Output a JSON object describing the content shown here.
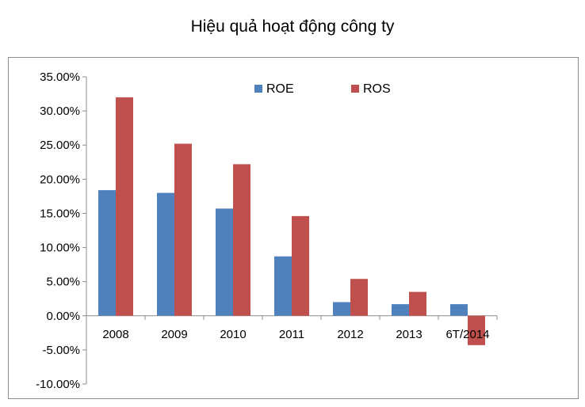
{
  "title": "Hiệu quả hoạt động công ty",
  "chart_data": {
    "type": "bar",
    "title": "Hiệu quả hoạt động công ty",
    "categories": [
      "2008",
      "2009",
      "2010",
      "2011",
      "2012",
      "2013",
      "6T/2014"
    ],
    "series": [
      {
        "name": "ROE",
        "color": "#4f81bd",
        "values": [
          18.4,
          18.0,
          15.7,
          8.7,
          2.0,
          1.7,
          1.7
        ]
      },
      {
        "name": "ROS",
        "color": "#c0504d",
        "values": [
          32.0,
          25.2,
          22.2,
          14.6,
          5.4,
          3.5,
          -4.3
        ]
      }
    ],
    "ylim": [
      -10,
      35
    ],
    "yticks": [
      "35.00%",
      "30.00%",
      "25.00%",
      "20.00%",
      "15.00%",
      "10.00%",
      "5.00%",
      "0.00%",
      "-5.00%",
      "-10.00%"
    ],
    "ytick_values": [
      35,
      30,
      25,
      20,
      15,
      10,
      5,
      0,
      -5,
      -10
    ],
    "xlabel": "",
    "ylabel": "",
    "grid": false,
    "legend": "top-center"
  }
}
